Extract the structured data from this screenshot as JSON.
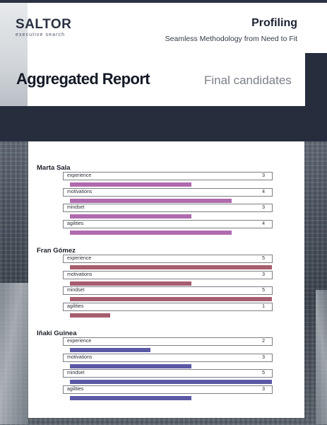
{
  "logo": {
    "main": "SALTOR",
    "sub": "executive search"
  },
  "header": {
    "title": "Profiling",
    "subtitle": "Seamless Methodology from Need to Fit"
  },
  "report": {
    "title": "Aggregated Report",
    "subtitle": "Final candidates"
  },
  "scale_max": 5,
  "candidates": [
    {
      "name": "Marta Sala",
      "color": "#b06aae",
      "metrics": [
        {
          "label": "experience",
          "value": 3
        },
        {
          "label": "motivations",
          "value": 4
        },
        {
          "label": "mindset",
          "value": 3
        },
        {
          "label": "agilities",
          "value": 4
        }
      ]
    },
    {
      "name": "Fran Gómez",
      "color": "#a65d6e",
      "metrics": [
        {
          "label": "experience",
          "value": 5
        },
        {
          "label": "motivations",
          "value": 3
        },
        {
          "label": "mindset",
          "value": 5
        },
        {
          "label": "agilities",
          "value": 1
        }
      ]
    },
    {
      "name": "Iñaki Guinea",
      "color": "#5b59a6",
      "metrics": [
        {
          "label": "experience",
          "value": 2
        },
        {
          "label": "motivations",
          "value": 3
        },
        {
          "label": "mindset",
          "value": 5
        },
        {
          "label": "agilities",
          "value": 3
        }
      ]
    }
  ]
}
